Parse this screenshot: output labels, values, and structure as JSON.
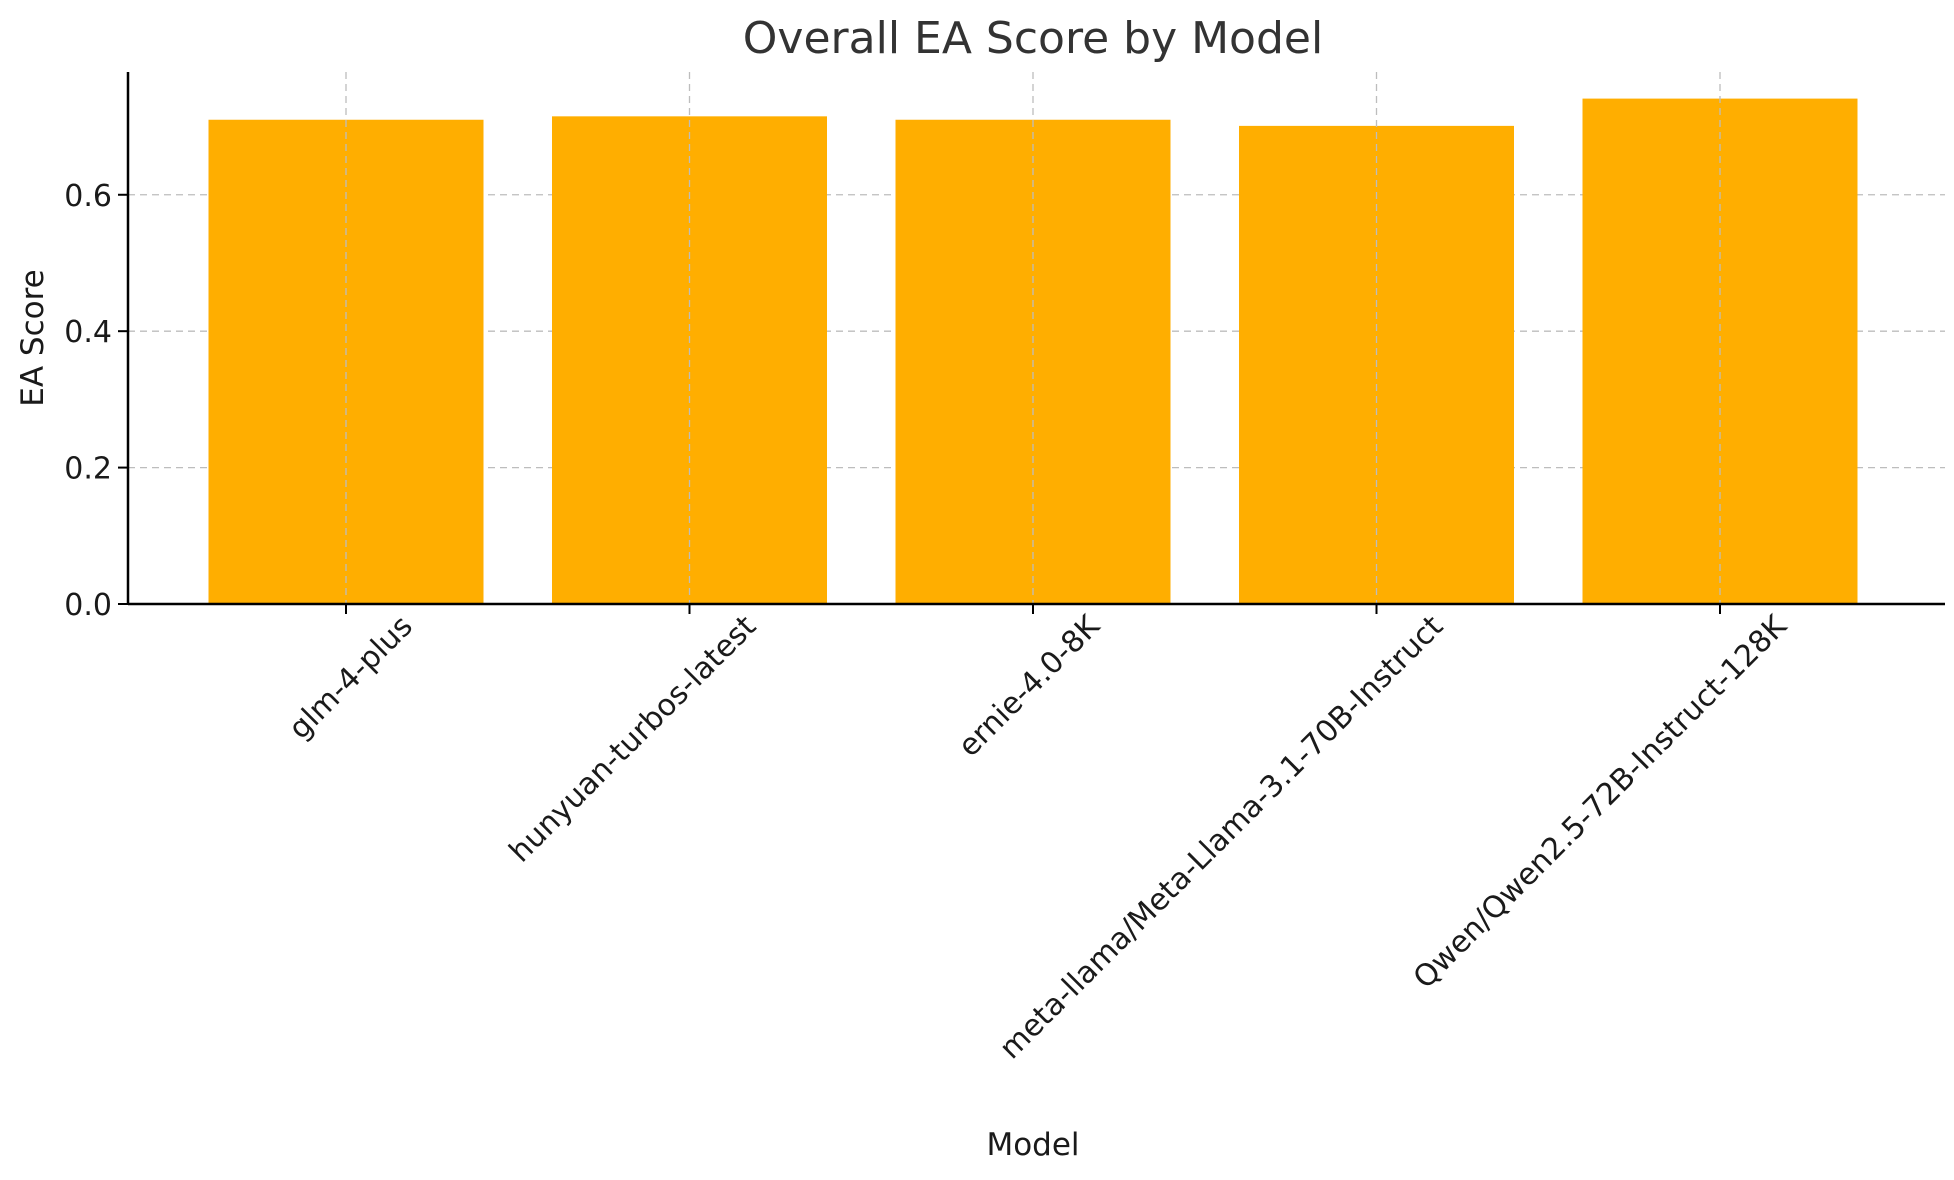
{
  "chart_data": {
    "type": "bar",
    "title": "Overall EA Score by Model",
    "xlabel": "Model",
    "ylabel": "EA Score",
    "categories": [
      "glm-4-plus",
      "hunyuan-turbos-latest",
      "ernie-4.0-8K",
      "meta-llama/Meta-Llama-3.1-70B-Instruct",
      "Qwen/Qwen2.5-72B-Instruct-128K"
    ],
    "values": [
      0.71,
      0.715,
      0.71,
      0.701,
      0.741
    ],
    "ylim": [
      0,
      0.78
    ],
    "yticks": [
      "0.0",
      "0.2",
      "0.4",
      "0.6"
    ],
    "bar_color": "#FFAE00",
    "grid": true,
    "xtick_rotation": "45deg"
  }
}
